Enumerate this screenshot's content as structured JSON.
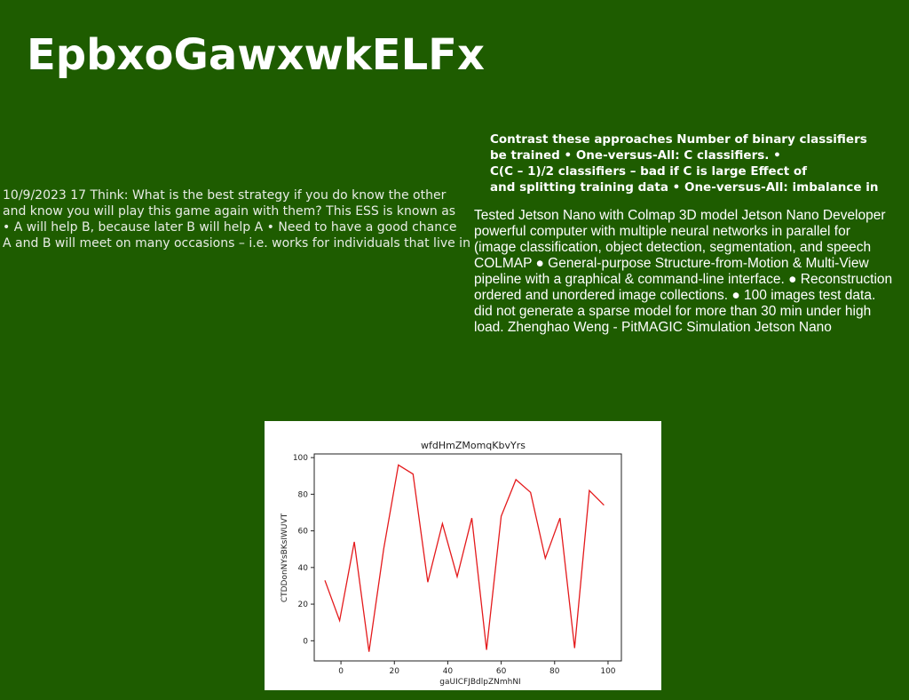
{
  "page": {
    "title": "EpbxoGawxwkELFx"
  },
  "left_text": {
    "lines": [
      "10/9/2023 17 Think: What is the best strategy if you do know the other",
      "and know you will play this game again with them? This ESS is known as",
      "• A will help B, because later B will help A • Need to have a good chance",
      "A and B will meet on many occasions – i.e. works for individuals that live in"
    ]
  },
  "bold_text": {
    "lines": [
      "Contrast these approaches Number of binary classifiers",
      "be trained • One-versus-All: C classifiers. •",
      "C(C – 1)/2 classifiers – bad if C is large Effect of",
      "and splitting training data • One-versus-All: imbalance in"
    ]
  },
  "right_text": {
    "lines": [
      "Tested Jetson Nano with Colmap 3D model Jetson Nano Developer",
      "powerful computer with multiple neural networks in parallel for",
      "(image classification, object detection, segmentation, and speech",
      "COLMAP ● General-purpose Structure-from-Motion & Multi-View",
      "pipeline with a graphical & command-line interface. ● Reconstruction",
      "ordered and unordered image collections. ● 100 images test data.",
      "did not generate a sparse model for more than 30 min under high",
      "load. Zhenghao Weng - PitMAGIC Simulation Jetson Nano"
    ]
  },
  "chart_data": {
    "type": "line",
    "title": "wfdHmZMomqKbvYrs",
    "xlabel": "gaUICFJBdlpZNmhNI",
    "ylabel": "CTDDonNYsBKsIWUVT",
    "xlim": [
      -10,
      105
    ],
    "ylim": [
      -11,
      102
    ],
    "xticks": [
      0,
      20,
      40,
      60,
      80,
      100
    ],
    "yticks": [
      0,
      20,
      40,
      60,
      80,
      100
    ],
    "grid": false,
    "series": [
      {
        "color": "#e41a1c",
        "x": [
          -6,
          -0.5,
          5,
          10.5,
          16,
          21.5,
          27,
          32.5,
          38,
          43.5,
          49,
          54.5,
          60,
          65.5,
          71,
          76.5,
          82,
          87.5,
          93,
          98.5
        ],
        "y": [
          33,
          11,
          54,
          -6,
          50,
          96,
          91,
          32,
          64,
          35,
          67,
          -5,
          68,
          88,
          81,
          45,
          67,
          -4,
          82,
          74
        ]
      }
    ]
  }
}
